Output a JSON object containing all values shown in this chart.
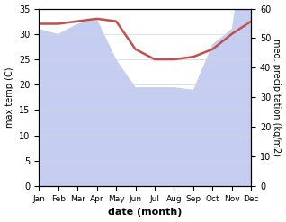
{
  "months": [
    "Jan",
    "Feb",
    "Mar",
    "Apr",
    "May",
    "Jun",
    "Jul",
    "Aug",
    "Sep",
    "Oct",
    "Nov",
    "Dec"
  ],
  "temperature": [
    32,
    32,
    32.5,
    33,
    32.5,
    27,
    25,
    25,
    25.5,
    27,
    30,
    32.5
  ],
  "precipitation_left_scale": [
    31,
    30,
    32,
    33,
    25,
    19.5,
    19.5,
    19.5,
    19,
    28,
    31,
    56
  ],
  "temp_color": "#c0504d",
  "precip_fill_color": "#c5cef0",
  "xlabel": "date (month)",
  "ylabel_left": "max temp (C)",
  "ylabel_right": "med. precipitation (kg/m2)",
  "ylim_left": [
    0,
    35
  ],
  "ylim_right": [
    0,
    60
  ],
  "yticks_left": [
    0,
    5,
    10,
    15,
    20,
    25,
    30,
    35
  ],
  "yticks_right": [
    0,
    10,
    20,
    30,
    40,
    50,
    60
  ],
  "background_color": "#ffffff",
  "temp_linewidth": 1.8
}
